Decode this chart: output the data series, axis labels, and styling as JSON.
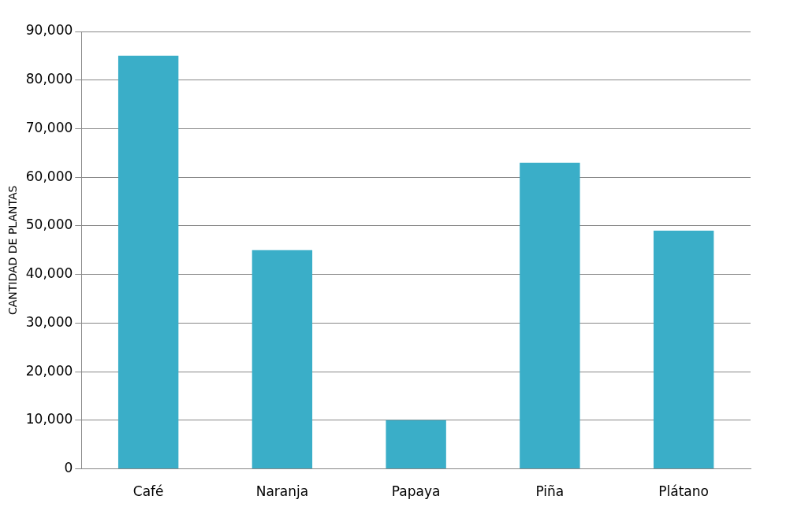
{
  "chart_data": {
    "type": "bar",
    "ylabel": "CANTIDAD DE PLANTAS",
    "categories": [
      "Café",
      "Naranja",
      "Papaya",
      "Piña",
      "Plátano"
    ],
    "values": [
      85000,
      45000,
      10000,
      63000,
      49000
    ],
    "color": "#3aaec8",
    "ylim": [
      0,
      90000
    ],
    "yticks": [
      {
        "value": 0,
        "label": "0"
      },
      {
        "value": 10000,
        "label": "10,000"
      },
      {
        "value": 20000,
        "label": "20,000"
      },
      {
        "value": 30000,
        "label": "30,000"
      },
      {
        "value": 40000,
        "label": "40,000"
      },
      {
        "value": 50000,
        "label": "50,000"
      },
      {
        "value": 60000,
        "label": "60,000"
      },
      {
        "value": 70000,
        "label": "70,000"
      },
      {
        "value": 80000,
        "label": "80,000"
      },
      {
        "value": 90000,
        "label": "90,000"
      }
    ],
    "grid": "y"
  }
}
